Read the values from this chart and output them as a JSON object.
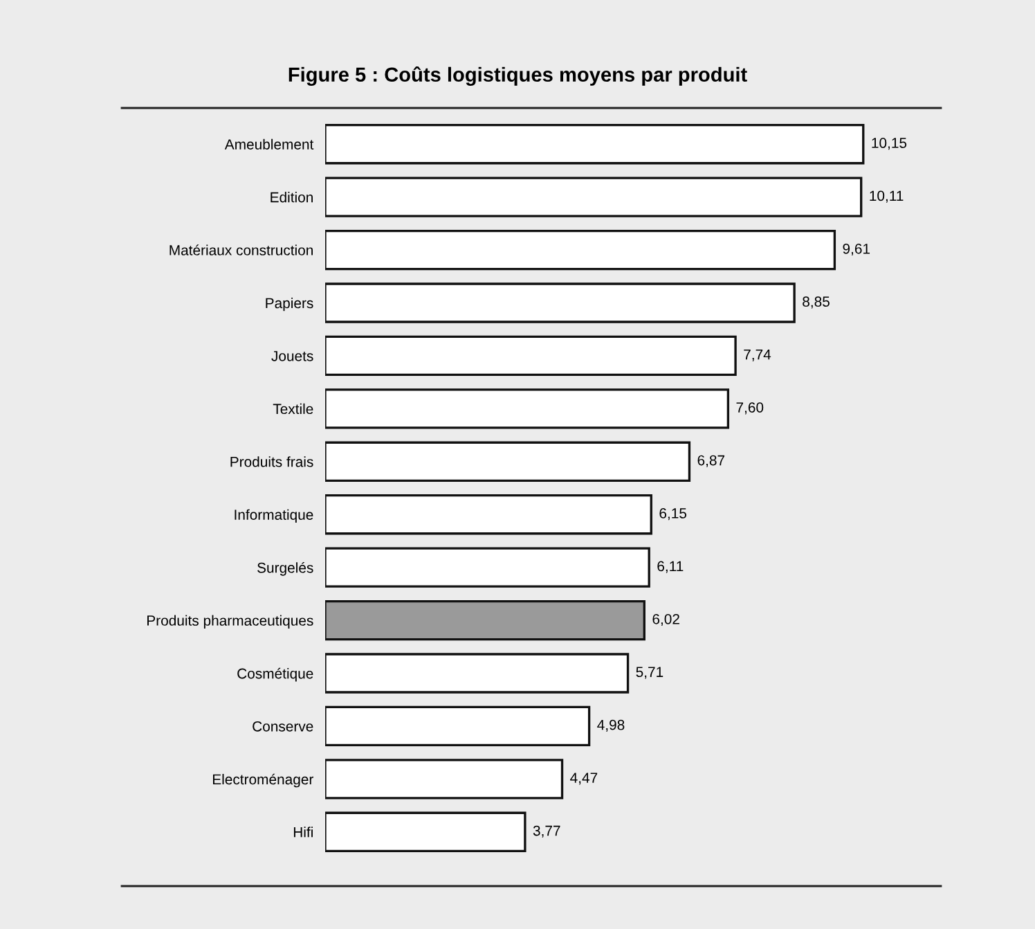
{
  "chart_data": {
    "type": "bar",
    "orientation": "horizontal",
    "title": "Figure 5 : Coûts logistiques moyens par produit",
    "categories": [
      "Ameublement",
      "Edition",
      "Matériaux construction",
      "Papiers",
      "Jouets",
      "Textile",
      "Produits frais",
      "Informatique",
      "Surgelés",
      "Produits pharmaceutiques",
      "Cosmétique",
      "Conserve",
      "Electroménager",
      "Hifi"
    ],
    "values": [
      10.15,
      10.11,
      9.61,
      8.85,
      7.74,
      7.6,
      6.87,
      6.15,
      6.11,
      6.02,
      5.71,
      4.98,
      4.47,
      3.77
    ],
    "value_labels": [
      "10,15",
      "10,11",
      "9,61",
      "8,85",
      "7,74",
      "7,60",
      "6,87",
      "6,15",
      "6,11",
      "6,02",
      "5,71",
      "4,98",
      "4,47",
      "3,77"
    ],
    "colors": [
      "#ffffff",
      "#ffffff",
      "#ffffff",
      "#ffffff",
      "#ffffff",
      "#ffffff",
      "#ffffff",
      "#ffffff",
      "#ffffff",
      "#9a9a9a",
      "#ffffff",
      "#ffffff",
      "#ffffff",
      "#ffffff"
    ],
    "grid": false,
    "legend": false
  }
}
